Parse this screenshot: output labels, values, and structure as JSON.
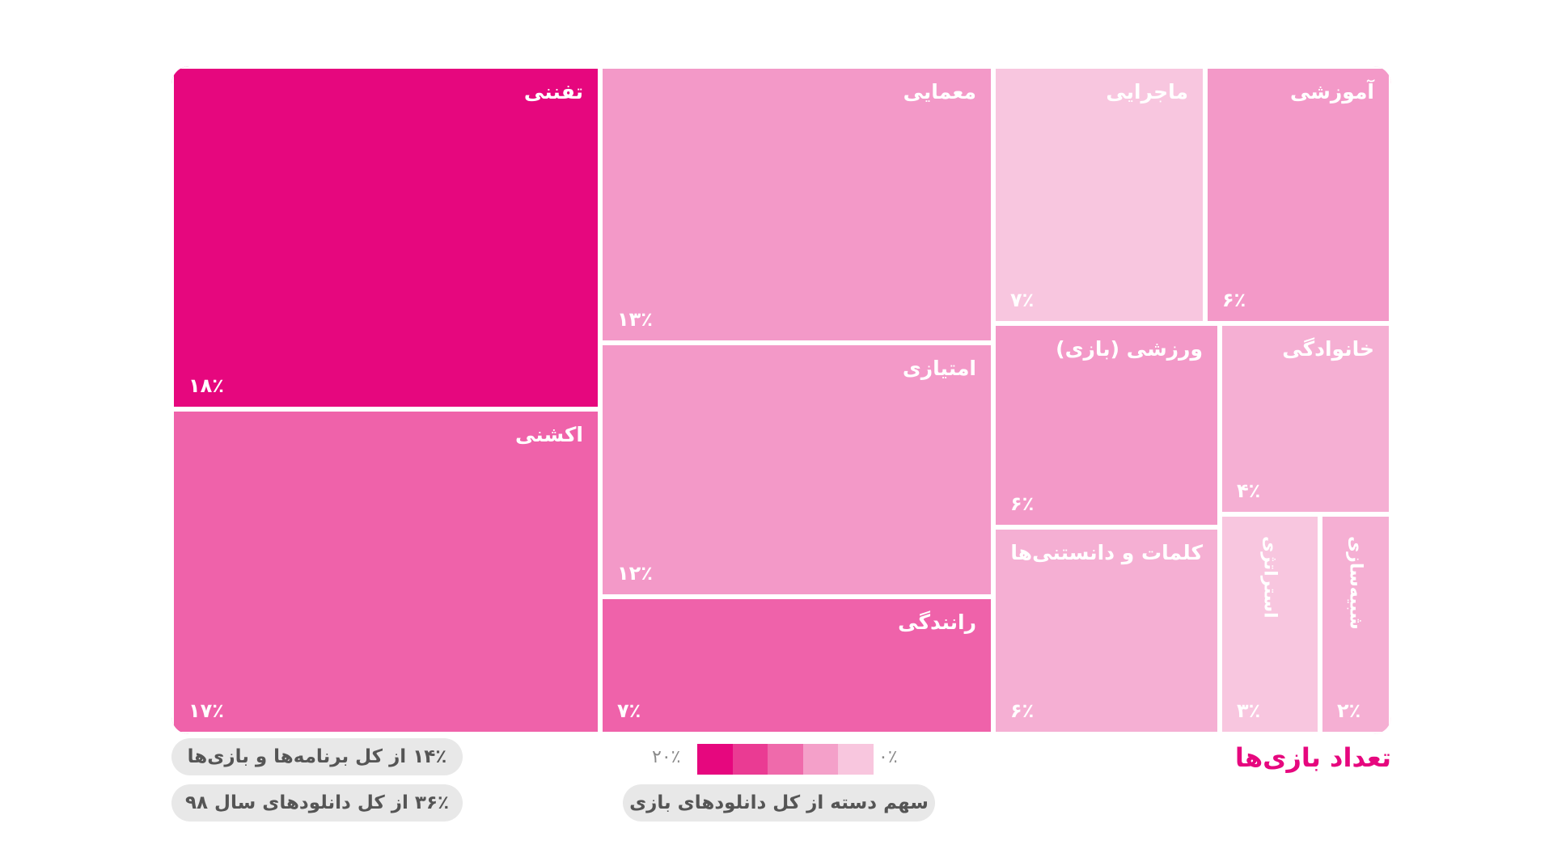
{
  "legend": {
    "title": "تعداد بازی‌ها",
    "scale_min": "۰٪",
    "scale_max": "۲۰٪",
    "scale_caption": "سهم دسته از کل دانلودهای بازی",
    "scale_colors": [
      "#e6077e",
      "#ea3b93",
      "#ef6aab",
      "#f4a0c9",
      "#f8c6de"
    ]
  },
  "stats": {
    "share_of_apps": "۱۴٪ از کل برنامه‌ها و بازی‌ها",
    "share_of_downloads": "۳۶٪ از کل دانلودهای سال ۹۸"
  },
  "chart_data": {
    "type": "treemap",
    "title": "تعداد بازی‌ها",
    "colors": {
      "c1": "#e6077e",
      "c2": "#ef62aa",
      "c3": "#f399c8",
      "c4": "#f5afd3",
      "c5": "#f8c6df"
    },
    "tiles": [
      {
        "name": "تفننی",
        "value": 18,
        "label": "۱۸٪",
        "shade": "c1"
      },
      {
        "name": "اکشنی",
        "value": 17,
        "label": "۱۷٪",
        "shade": "c2"
      },
      {
        "name": "معمایی",
        "value": 13,
        "label": "۱۳٪",
        "shade": "c3"
      },
      {
        "name": "امتیازی",
        "value": 12,
        "label": "۱۲٪",
        "shade": "c3"
      },
      {
        "name": "رانندگی",
        "value": 7,
        "label": "۷٪",
        "shade": "c2"
      },
      {
        "name": "ماجرایی",
        "value": 7,
        "label": "۷٪",
        "shade": "c5"
      },
      {
        "name": "آموزشی",
        "value": 6,
        "label": "۶٪",
        "shade": "c3"
      },
      {
        "name": "ورزشی (بازی)",
        "value": 6,
        "label": "۶٪",
        "shade": "c3"
      },
      {
        "name": "خانوادگی",
        "value": 4,
        "label": "۴٪",
        "shade": "c4"
      },
      {
        "name": "کلمات و دانستنی‌ها",
        "value": 6,
        "label": "۶٪",
        "shade": "c4"
      },
      {
        "name": "استراتژی",
        "value": 3,
        "label": "۳٪",
        "shade": "c5"
      },
      {
        "name": "شبیه‌سازی",
        "value": 2,
        "label": "۲٪",
        "shade": "c4"
      }
    ]
  }
}
